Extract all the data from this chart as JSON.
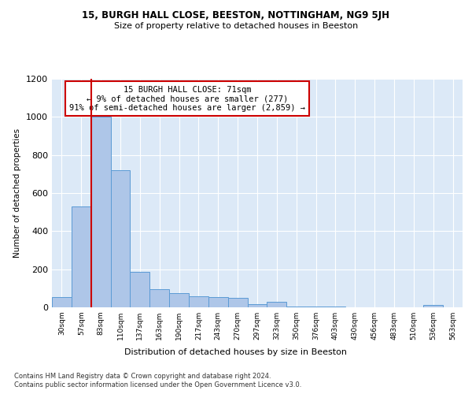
{
  "title1": "15, BURGH HALL CLOSE, BEESTON, NOTTINGHAM, NG9 5JH",
  "title2": "Size of property relative to detached houses in Beeston",
  "xlabel": "Distribution of detached houses by size in Beeston",
  "ylabel": "Number of detached properties",
  "categories": [
    "30sqm",
    "57sqm",
    "83sqm",
    "110sqm",
    "137sqm",
    "163sqm",
    "190sqm",
    "217sqm",
    "243sqm",
    "270sqm",
    "297sqm",
    "323sqm",
    "350sqm",
    "376sqm",
    "403sqm",
    "430sqm",
    "456sqm",
    "483sqm",
    "510sqm",
    "536sqm",
    "563sqm"
  ],
  "values": [
    55,
    530,
    1000,
    720,
    185,
    95,
    75,
    60,
    55,
    50,
    18,
    30,
    5,
    5,
    5,
    2,
    2,
    2,
    2,
    12,
    2
  ],
  "bar_color": "#aec6e8",
  "bar_edge_color": "#5b9bd5",
  "vline_x": 1.5,
  "vline_color": "#cc0000",
  "annotation_text": "15 BURGH HALL CLOSE: 71sqm\n← 9% of detached houses are smaller (277)\n91% of semi-detached houses are larger (2,859) →",
  "annotation_box_color": "#ffffff",
  "annotation_box_edge": "#cc0000",
  "ylim": [
    0,
    1200
  ],
  "yticks": [
    0,
    200,
    400,
    600,
    800,
    1000,
    1200
  ],
  "footer1": "Contains HM Land Registry data © Crown copyright and database right 2024.",
  "footer2": "Contains public sector information licensed under the Open Government Licence v3.0.",
  "fig_bg_color": "#ffffff",
  "plot_bg_color": "#dce9f7"
}
